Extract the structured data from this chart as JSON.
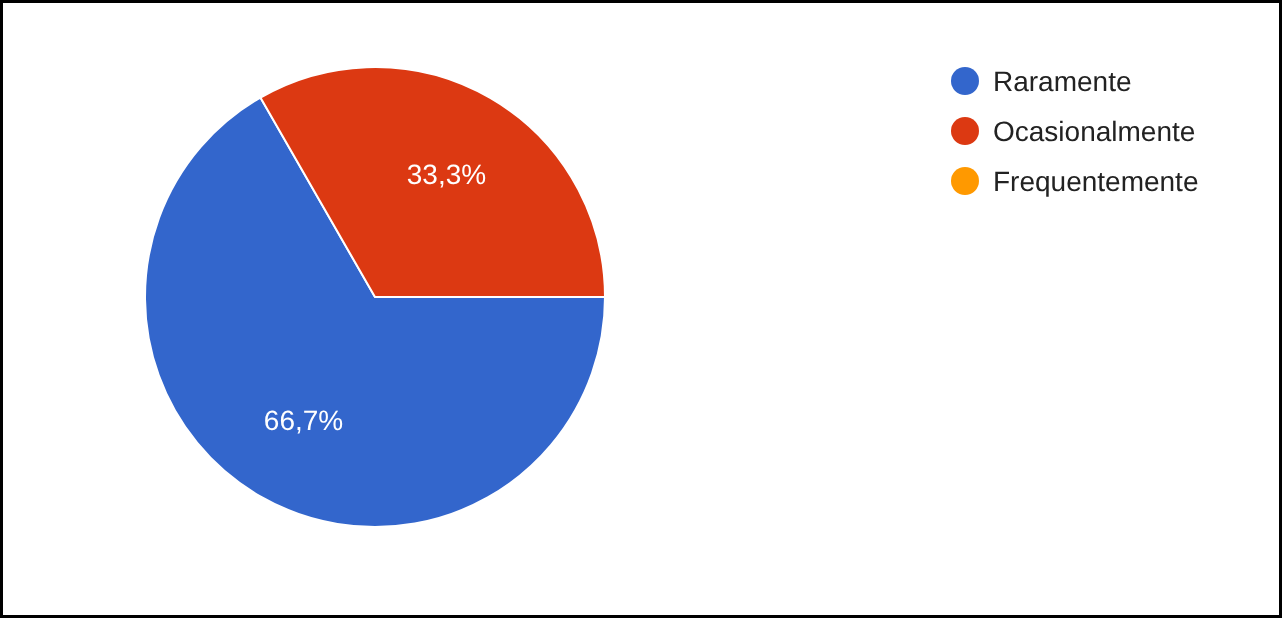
{
  "chart_data": {
    "type": "pie",
    "categories": [
      "Raramente",
      "Ocasionalmente",
      "Frequentemente"
    ],
    "values": [
      66.7,
      33.3,
      0
    ],
    "colors": [
      "#3366cc",
      "#dc3912",
      "#ff9900"
    ],
    "value_labels": [
      "66,7%",
      "33,3%",
      null
    ],
    "legend": "top right"
  }
}
